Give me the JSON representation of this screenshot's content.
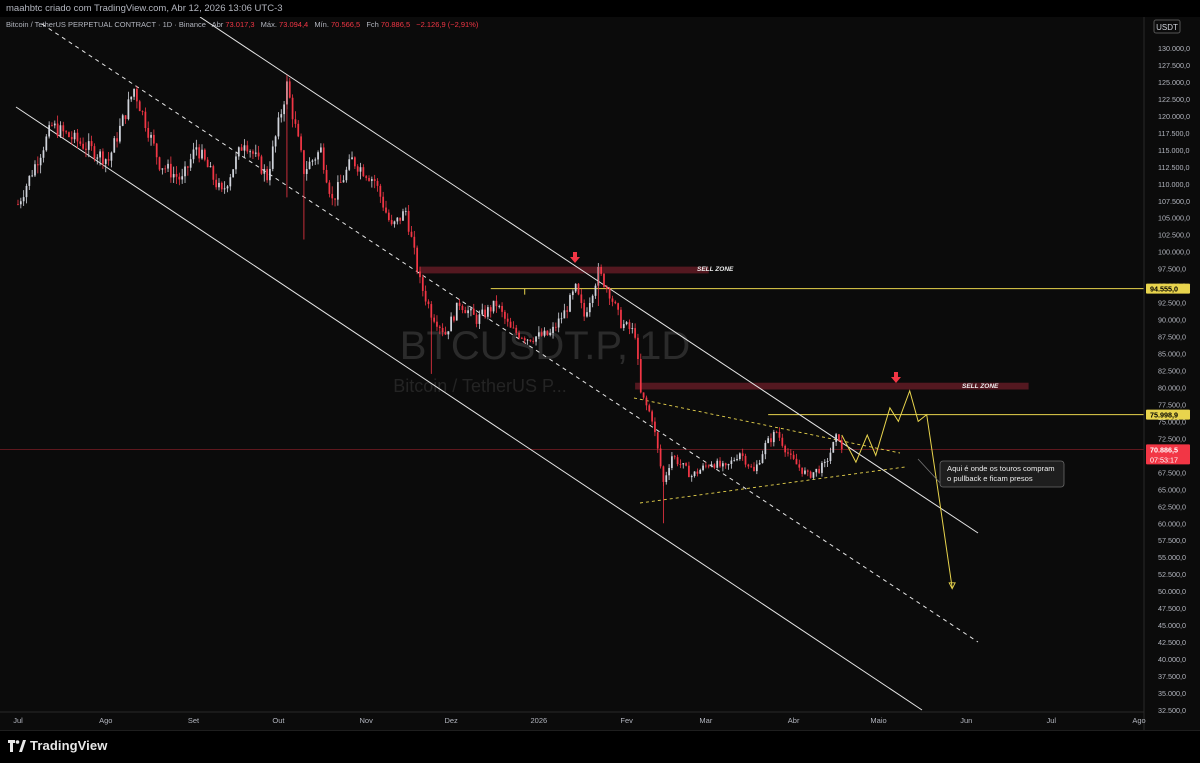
{
  "header": {
    "byline": "maahbtc criado com TradingView.com, Abr 12, 2026 13:06 UTC-3"
  },
  "legend": {
    "symbol": "Bitcoin / TetherUS PERPETUAL CONTRACT · 1D · Binance",
    "open_label": "Abr",
    "open_value": "73.017,3",
    "high_label": "Máx.",
    "high_value": "73.094,4",
    "low_label": "Mín.",
    "low_value": "70.566,5",
    "close_label": "Fch",
    "close_value": "70.886,5",
    "change": "−2.126,9 (−2,91%)"
  },
  "watermark": {
    "ticker": "BTCUSDT.P, 1D",
    "name": "Bitcoin / TetherUS P..."
  },
  "currency": "USDT",
  "footer": {
    "brand": "TradingView"
  },
  "annotations": {
    "sell_zone_1": "SELL ZONE",
    "sell_zone_2": "SELL ZONE",
    "callout": [
      "Aqui é onde os touros compram",
      "o pullback e ficam presos"
    ]
  },
  "price_badges": {
    "level_1": "94.555,0",
    "level_2": "75.998,9",
    "last_price": "70.886,5",
    "countdown": "07:53:17"
  },
  "colors": {
    "background": "#0b0b0b",
    "up": "#d1d4dc",
    "down": "#f23645",
    "channel": "#e6e6e6",
    "yellow": "#e8d44d",
    "sell_zone": "#5c1a22"
  },
  "chart_data": {
    "type": "candlestick",
    "y_axis": {
      "min": 32500,
      "max": 132500,
      "ticks": [
        "130.000,0",
        "127.500,0",
        "125.000,0",
        "122.500,0",
        "120.000,0",
        "117.500,0",
        "115.000,0",
        "112.500,0",
        "110.000,0",
        "107.500,0",
        "105.000,0",
        "102.500,0",
        "100.000,0",
        "97.500,0",
        "95.000,0",
        "92.500,0",
        "90.000,0",
        "87.500,0",
        "85.000,0",
        "82.500,0",
        "80.000,0",
        "77.500,0",
        "75.000,0",
        "72.500,0",
        "70.000,0",
        "67.500,0",
        "65.000,0",
        "62.500,0",
        "60.000,0",
        "57.500,0",
        "55.000,0",
        "52.500,0",
        "50.000,0",
        "47.500,0",
        "45.000,0",
        "42.500,0",
        "40.000,0",
        "37.500,0",
        "35.000,0",
        "32.500,0"
      ],
      "tick_values": [
        130000,
        127500,
        125000,
        122500,
        120000,
        117500,
        115000,
        112500,
        110000,
        107500,
        105000,
        102500,
        100000,
        97500,
        95000,
        92500,
        90000,
        87500,
        85000,
        82500,
        80000,
        77500,
        75000,
        72500,
        70000,
        67500,
        65000,
        62500,
        60000,
        57500,
        55000,
        52500,
        50000,
        47500,
        45000,
        42500,
        40000,
        37500,
        35000,
        32500
      ]
    },
    "x_axis": {
      "ticks": [
        "Jul",
        "Ago",
        "Set",
        "Out",
        "Nov",
        "Dez",
        "2026",
        "Fev",
        "Mar",
        "Abr",
        "Maio",
        "Jun",
        "Jul",
        "Ago"
      ],
      "tick_days": [
        0,
        31,
        62,
        92,
        123,
        153,
        184,
        215,
        243,
        274,
        304,
        335,
        365,
        396
      ]
    },
    "grid": false,
    "anchors": [
      {
        "day": 0,
        "price": 107000
      },
      {
        "day": 12,
        "price": 118500
      },
      {
        "day": 22,
        "price": 116000
      },
      {
        "day": 32,
        "price": 113500
      },
      {
        "day": 41,
        "price": 124000
      },
      {
        "day": 50,
        "price": 113000
      },
      {
        "day": 58,
        "price": 110500
      },
      {
        "day": 63,
        "price": 115500
      },
      {
        "day": 72,
        "price": 108500
      },
      {
        "day": 80,
        "price": 116500
      },
      {
        "day": 88,
        "price": 111000
      },
      {
        "day": 95,
        "price": 124500
      },
      {
        "day": 101,
        "price": 112000
      },
      {
        "day": 107,
        "price": 115000
      },
      {
        "day": 111,
        "price": 107500
      },
      {
        "day": 118,
        "price": 113500
      },
      {
        "day": 126,
        "price": 110500
      },
      {
        "day": 132,
        "price": 103500
      },
      {
        "day": 137,
        "price": 106000
      },
      {
        "day": 142,
        "price": 95500
      },
      {
        "day": 146,
        "price": 91000
      },
      {
        "day": 151,
        "price": 88000
      },
      {
        "day": 156,
        "price": 92500
      },
      {
        "day": 162,
        "price": 90000
      },
      {
        "day": 169,
        "price": 92300
      },
      {
        "day": 174,
        "price": 88500
      },
      {
        "day": 180,
        "price": 87300
      },
      {
        "day": 188,
        "price": 87800
      },
      {
        "day": 193,
        "price": 91000
      },
      {
        "day": 197,
        "price": 94500
      },
      {
        "day": 200,
        "price": 90500
      },
      {
        "day": 205,
        "price": 97000
      },
      {
        "day": 209,
        "price": 94000
      },
      {
        "day": 213,
        "price": 89500
      },
      {
        "day": 218,
        "price": 88000
      },
      {
        "day": 220,
        "price": 79000
      },
      {
        "day": 224,
        "price": 75500
      },
      {
        "day": 228,
        "price": 66000
      },
      {
        "day": 231,
        "price": 70000
      },
      {
        "day": 238,
        "price": 67000
      },
      {
        "day": 245,
        "price": 69000
      },
      {
        "day": 250,
        "price": 68000
      },
      {
        "day": 255,
        "price": 70500
      },
      {
        "day": 260,
        "price": 67500
      },
      {
        "day": 264,
        "price": 71500
      },
      {
        "day": 268,
        "price": 73500
      },
      {
        "day": 273,
        "price": 69500
      },
      {
        "day": 279,
        "price": 67000
      },
      {
        "day": 285,
        "price": 68500
      },
      {
        "day": 289,
        "price": 72500
      },
      {
        "day": 291,
        "price": 73000
      }
    ],
    "levels": {
      "sell_zone_1": [
        96800,
        97800
      ],
      "sell_zone_2": [
        79700,
        80700
      ],
      "resistance_1": 94555,
      "resistance_2": 75998.9,
      "last_price": 70886.5
    }
  }
}
